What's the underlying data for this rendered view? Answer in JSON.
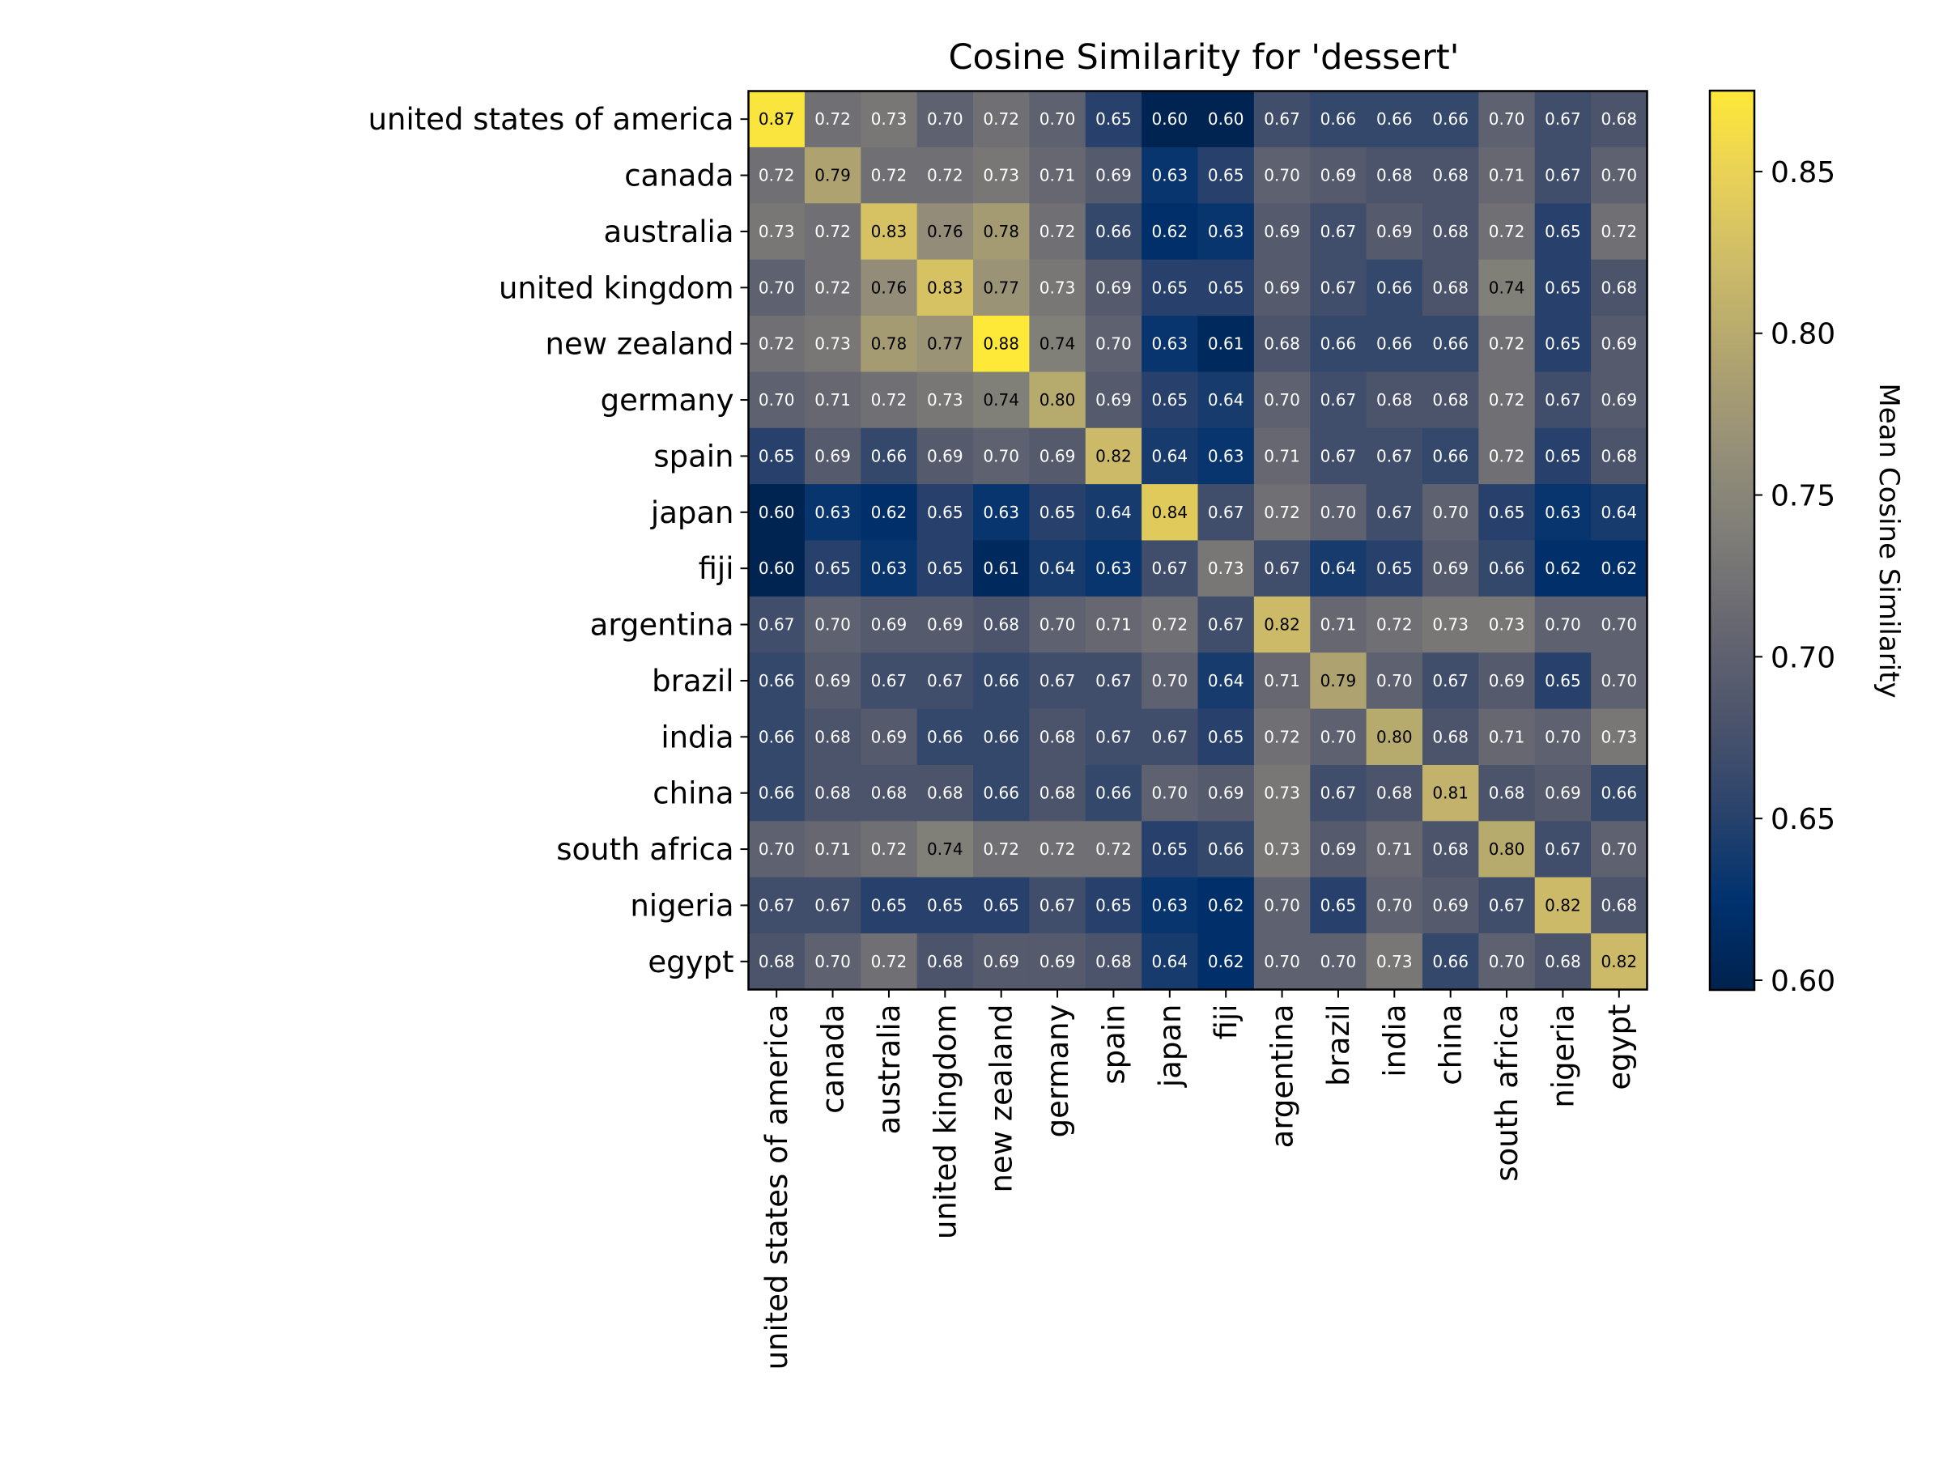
{
  "chart_data": {
    "type": "heatmap",
    "title": "Cosine Similarity for 'dessert'",
    "row_labels": [
      "united states of america",
      "canada",
      "australia",
      "united kingdom",
      "new zealand",
      "germany",
      "spain",
      "japan",
      "fiji",
      "argentina",
      "brazil",
      "india",
      "china",
      "south africa",
      "nigeria",
      "egypt"
    ],
    "col_labels": [
      "united states of america",
      "canada",
      "australia",
      "united kingdom",
      "new zealand",
      "germany",
      "spain",
      "japan",
      "fiji",
      "argentina",
      "brazil",
      "india",
      "china",
      "south africa",
      "nigeria",
      "egypt"
    ],
    "values": [
      [
        0.87,
        0.72,
        0.73,
        0.7,
        0.72,
        0.7,
        0.65,
        0.6,
        0.6,
        0.67,
        0.66,
        0.66,
        0.66,
        0.7,
        0.67,
        0.68
      ],
      [
        0.72,
        0.79,
        0.72,
        0.72,
        0.73,
        0.71,
        0.69,
        0.63,
        0.65,
        0.7,
        0.69,
        0.68,
        0.68,
        0.71,
        0.67,
        0.7
      ],
      [
        0.73,
        0.72,
        0.83,
        0.76,
        0.78,
        0.72,
        0.66,
        0.62,
        0.63,
        0.69,
        0.67,
        0.69,
        0.68,
        0.72,
        0.65,
        0.72
      ],
      [
        0.7,
        0.72,
        0.76,
        0.83,
        0.77,
        0.73,
        0.69,
        0.65,
        0.65,
        0.69,
        0.67,
        0.66,
        0.68,
        0.74,
        0.65,
        0.68
      ],
      [
        0.72,
        0.73,
        0.78,
        0.77,
        0.88,
        0.74,
        0.7,
        0.63,
        0.61,
        0.68,
        0.66,
        0.66,
        0.66,
        0.72,
        0.65,
        0.69
      ],
      [
        0.7,
        0.71,
        0.72,
        0.73,
        0.74,
        0.8,
        0.69,
        0.65,
        0.64,
        0.7,
        0.67,
        0.68,
        0.68,
        0.72,
        0.67,
        0.69
      ],
      [
        0.65,
        0.69,
        0.66,
        0.69,
        0.7,
        0.69,
        0.82,
        0.64,
        0.63,
        0.71,
        0.67,
        0.67,
        0.66,
        0.72,
        0.65,
        0.68
      ],
      [
        0.6,
        0.63,
        0.62,
        0.65,
        0.63,
        0.65,
        0.64,
        0.84,
        0.67,
        0.72,
        0.7,
        0.67,
        0.7,
        0.65,
        0.63,
        0.64
      ],
      [
        0.6,
        0.65,
        0.63,
        0.65,
        0.61,
        0.64,
        0.63,
        0.67,
        0.73,
        0.67,
        0.64,
        0.65,
        0.69,
        0.66,
        0.62,
        0.62
      ],
      [
        0.67,
        0.7,
        0.69,
        0.69,
        0.68,
        0.7,
        0.71,
        0.72,
        0.67,
        0.82,
        0.71,
        0.72,
        0.73,
        0.73,
        0.7,
        0.7
      ],
      [
        0.66,
        0.69,
        0.67,
        0.67,
        0.66,
        0.67,
        0.67,
        0.7,
        0.64,
        0.71,
        0.79,
        0.7,
        0.67,
        0.69,
        0.65,
        0.7
      ],
      [
        0.66,
        0.68,
        0.69,
        0.66,
        0.66,
        0.68,
        0.67,
        0.67,
        0.65,
        0.72,
        0.7,
        0.8,
        0.68,
        0.71,
        0.7,
        0.73
      ],
      [
        0.66,
        0.68,
        0.68,
        0.68,
        0.66,
        0.68,
        0.66,
        0.7,
        0.69,
        0.73,
        0.67,
        0.68,
        0.81,
        0.68,
        0.69,
        0.66
      ],
      [
        0.7,
        0.71,
        0.72,
        0.74,
        0.72,
        0.72,
        0.72,
        0.65,
        0.66,
        0.73,
        0.69,
        0.71,
        0.68,
        0.8,
        0.67,
        0.7
      ],
      [
        0.67,
        0.67,
        0.65,
        0.65,
        0.65,
        0.67,
        0.65,
        0.63,
        0.62,
        0.7,
        0.65,
        0.7,
        0.69,
        0.67,
        0.82,
        0.68
      ],
      [
        0.68,
        0.7,
        0.72,
        0.68,
        0.69,
        0.69,
        0.68,
        0.64,
        0.62,
        0.7,
        0.7,
        0.73,
        0.66,
        0.7,
        0.68,
        0.82
      ]
    ],
    "colormap": "cividis",
    "colorbar": {
      "label": "Mean Cosine Similarity",
      "range": [
        0.597,
        0.875
      ],
      "ticks": [
        0.6,
        0.65,
        0.7,
        0.75,
        0.8,
        0.85
      ],
      "tick_labels": [
        "0.60",
        "0.65",
        "0.70",
        "0.75",
        "0.80",
        "0.85"
      ]
    },
    "cell_labels": true,
    "grid": false
  }
}
